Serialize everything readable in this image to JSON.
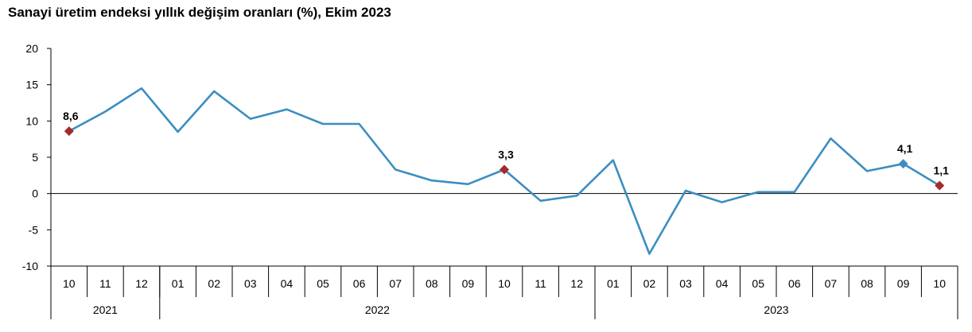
{
  "title": "Sanayi üretim endeksi yıllık değişim oranları (%), Ekim 2023",
  "chart_data": {
    "type": "line",
    "categories": [
      "10",
      "11",
      "12",
      "01",
      "02",
      "03",
      "04",
      "05",
      "06",
      "07",
      "08",
      "09",
      "10",
      "11",
      "12",
      "01",
      "02",
      "03",
      "04",
      "05",
      "06",
      "07",
      "08",
      "09",
      "10"
    ],
    "year_groups": [
      {
        "label": "2021",
        "start": 0,
        "end": 2
      },
      {
        "label": "2022",
        "start": 3,
        "end": 14
      },
      {
        "label": "2023",
        "start": 15,
        "end": 24
      }
    ],
    "series": [
      {
        "values": [
          8.6,
          11.3,
          14.5,
          8.5,
          14.1,
          10.3,
          11.6,
          9.6,
          9.6,
          3.3,
          1.8,
          1.3,
          3.3,
          -1.0,
          -0.3,
          4.6,
          -8.3,
          0.4,
          -1.2,
          0.2,
          0.2,
          7.6,
          3.1,
          4.1,
          1.1
        ],
        "color": "#3b8ec0"
      }
    ],
    "highlights": [
      {
        "index": 0,
        "label": "8,6",
        "color": "#a52a2a"
      },
      {
        "index": 12,
        "label": "3,3",
        "color": "#a52a2a"
      },
      {
        "index": 23,
        "label": "4,1",
        "color": "#3b8ec0"
      },
      {
        "index": 24,
        "label": "1,1",
        "color": "#a52a2a"
      }
    ],
    "yticks": [
      "20",
      "15",
      "10",
      "5",
      "0",
      "-5",
      "-10"
    ],
    "ylim": [
      -10,
      20
    ],
    "grid": false
  }
}
